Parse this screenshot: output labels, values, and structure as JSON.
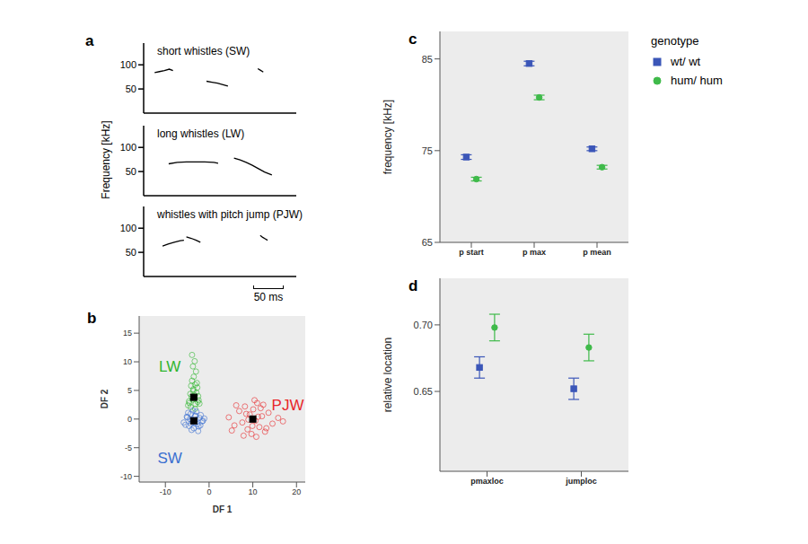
{
  "chart_data": [
    {
      "panel": "a",
      "type": "line",
      "title": "short whistles (SW)",
      "color": "#000000",
      "x": [
        18,
        26,
        34,
        42,
        48,
        75,
        103,
        112,
        121,
        130,
        138,
        160,
        187,
        191,
        196
      ],
      "values": [
        84,
        86,
        88,
        91,
        88,
        null,
        66,
        64,
        62,
        59,
        56,
        null,
        92,
        89,
        85
      ],
      "xlim": [
        0,
        250
      ],
      "ylim": [
        0,
        145
      ],
      "yticks": [
        50,
        100
      ],
      "tick_labels": "y"
    },
    {
      "type": "line",
      "title": "long whistles (LW)",
      "y_label": "Frequency  [kHz]",
      "color": "#000000",
      "x": [
        41,
        55,
        70,
        85,
        100,
        115,
        122,
        135,
        148,
        158,
        168,
        178,
        188,
        198,
        210
      ],
      "values": [
        66,
        69,
        70,
        70,
        70,
        69,
        67,
        null,
        78,
        74,
        69,
        63,
        56,
        49,
        43
      ],
      "xlim": [
        0,
        250
      ],
      "ylim": [
        0,
        145
      ],
      "yticks": [
        50,
        100
      ],
      "tick_labels": "y"
    },
    {
      "type": "line",
      "title": "whistles with pitch jump (PJW)",
      "color": "#000000",
      "x": [
        31,
        40,
        50,
        60,
        66,
        68,
        70,
        78,
        86,
        93,
        140,
        191,
        195,
        199,
        203
      ],
      "values": [
        63,
        67,
        71,
        74,
        75,
        null,
        82,
        79,
        75,
        71,
        null,
        85,
        81,
        78,
        75
      ],
      "xlim": [
        0,
        250
      ],
      "ylim": [
        0,
        145
      ],
      "yticks": [
        50,
        100
      ],
      "tick_labels": "y",
      "scale_bar": {
        "value": 50,
        "label": "50 ms"
      }
    },
    {
      "panel": "b",
      "type": "scatter",
      "x_label": "DF 1",
      "y_label": "DF 2",
      "xlim": [
        -16,
        22
      ],
      "xticks": [
        -10,
        0,
        10,
        20
      ],
      "ylim": [
        -11,
        18
      ],
      "yticks": [
        -10,
        -5,
        0,
        5,
        10,
        15
      ],
      "series": [
        {
          "name": "LW",
          "color": "#2fb52f",
          "marker": "circle",
          "x": [
            -4.2,
            -3.1,
            -2.6,
            -3.8,
            -4.5,
            -3.3,
            -2.9,
            -3.6,
            -4.0,
            -2.4,
            -3.2,
            -3.9,
            -4.8,
            -2.7,
            -3.5,
            -3.0,
            -4.3,
            -3.7,
            -2.2,
            -3.4,
            -4.1,
            -3.3,
            -2.8,
            -3.6,
            -4.6,
            -3.9,
            -3.2,
            -2.5
          ],
          "y": [
            2.1,
            2.6,
            3.0,
            3.4,
            2.8,
            4.1,
            4.6,
            5.2,
            3.9,
            3.3,
            6.0,
            6.7,
            2.4,
            5.5,
            7.4,
            8.3,
            4.4,
            9.2,
            2.7,
            3.6,
            5.8,
            10.1,
            6.3,
            4.9,
            3.1,
            11.2,
            1.8,
            4.0
          ]
        },
        {
          "name": "SW",
          "color": "#3a6fd0",
          "marker": "circle",
          "x": [
            -5.8,
            -5.1,
            -4.6,
            -4.2,
            -3.9,
            -3.5,
            -3.1,
            -2.7,
            -2.2,
            -1.6,
            -1.1,
            -5.4,
            -4.8,
            -4.0,
            -3.3,
            -2.9,
            -2.4,
            -1.9,
            -4.4,
            -3.7,
            -3.0,
            -2.5,
            -5.0,
            -3.6,
            -2.0,
            -4.1,
            -3.2,
            -1.4
          ],
          "y": [
            -0.6,
            0.4,
            -1.2,
            0.9,
            -0.2,
            -1.6,
            0.6,
            -0.9,
            0.2,
            -0.4,
            0.1,
            -1.0,
            1.1,
            -1.9,
            -0.7,
            1.3,
            -1.3,
            0.7,
            0.0,
            1.5,
            -0.1,
            -2.1,
            0.3,
            -0.5,
            -1.1,
            -0.8,
            0.5,
            -0.3
          ]
        },
        {
          "name": "PJW",
          "color": "#e8262a",
          "marker": "circle",
          "x": [
            4.5,
            5.8,
            6.9,
            7.6,
            8.2,
            8.8,
            9.3,
            9.7,
            10.1,
            10.6,
            11.0,
            11.5,
            12.1,
            12.8,
            13.6,
            14.5,
            15.8,
            6.2,
            7.9,
            9.0,
            10.4,
            11.8,
            13.1,
            8.5,
            9.9,
            11.2,
            12.4,
            16.9,
            5.2,
            10.8
          ],
          "y": [
            0.3,
            -1.1,
            1.4,
            -0.6,
            2.2,
            -1.8,
            0.8,
            -2.6,
            1.7,
            -0.3,
            2.8,
            -1.4,
            0.5,
            -2.2,
            1.1,
            -0.8,
            0.2,
            2.4,
            -2.9,
            -0.1,
            3.3,
            1.9,
            -1.6,
            0.9,
            -1.2,
            0.4,
            2.5,
            -0.4,
            -2.0,
            -3.1
          ]
        }
      ],
      "centroids": {
        "x": [
          -3.5,
          -3.5,
          10
        ],
        "y": [
          3.8,
          -0.3,
          0
        ],
        "color": "#000000",
        "marker": "square"
      }
    },
    {
      "panel": "c",
      "type": "scatter",
      "y_label": "frequency  [kHz]",
      "categories": [
        "p start",
        "p max",
        "p mean"
      ],
      "ylim": [
        65,
        88
      ],
      "yticks": [
        65,
        75,
        85
      ],
      "grid": false,
      "legend": "right",
      "legend_title": "genotype",
      "series": [
        {
          "name": "wt/ wt",
          "color": "#3b56b8",
          "marker": "square",
          "values": [
            74.3,
            84.5,
            75.2
          ],
          "errors": [
            0.25,
            0.25,
            0.2
          ]
        },
        {
          "name": "hum/ hum",
          "color": "#3fba4a",
          "marker": "circle",
          "values": [
            71.9,
            80.8,
            73.2
          ],
          "errors": [
            0.2,
            0.25,
            0.2
          ]
        }
      ]
    },
    {
      "panel": "d",
      "type": "scatter",
      "y_label": "relative location",
      "categories": [
        "pmaxloc",
        "jumploc"
      ],
      "ylim": [
        0.59,
        0.735
      ],
      "yticks": [
        0.65,
        {
          "value": 0.7,
          "label": "0.70"
        }
      ],
      "grid": false,
      "series": [
        {
          "name": "wt/ wt",
          "color": "#3b56b8",
          "marker": "square",
          "values": [
            0.668,
            0.652
          ],
          "errors": [
            0.008,
            0.008
          ]
        },
        {
          "name": "hum/ hum",
          "color": "#3fba4a",
          "marker": "circle",
          "values": [
            0.698,
            0.683
          ],
          "errors": [
            0.01,
            0.01
          ]
        }
      ]
    }
  ]
}
